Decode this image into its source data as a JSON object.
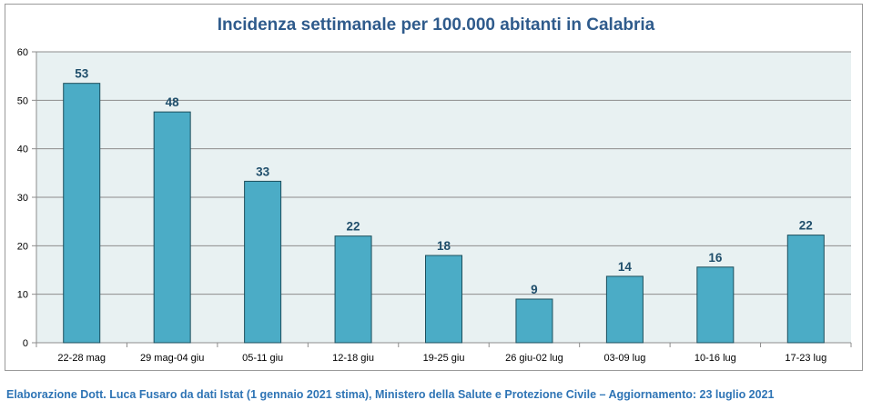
{
  "chart_data": {
    "type": "bar",
    "title": "Incidenza settimanale per 100.000 abitanti in Calabria",
    "categories": [
      "22-28 mag",
      "29 mag-04 giu",
      "05-11 giu",
      "12-18 giu",
      "19-25 giu",
      "26 giu-02 lug",
      "03-09 lug",
      "10-16 lug",
      "17-23 lug"
    ],
    "values": [
      53.5,
      47.6,
      33.3,
      22.0,
      18.0,
      9.0,
      13.7,
      15.6,
      22.2
    ],
    "data_labels": [
      "53",
      "48",
      "33",
      "22",
      "18",
      "9",
      "14",
      "16",
      "22"
    ],
    "yticks": [
      "0",
      "10",
      "20",
      "30",
      "40",
      "50",
      "60"
    ],
    "ylim": [
      0,
      60
    ],
    "grid": true,
    "legend": "none",
    "colors": {
      "bar_fill": "#4bacc6",
      "bar_stroke": "#1c4e5c",
      "plot_bg": "#e8f1f2",
      "title": "#2f5b8c",
      "data_label": "#1f4e6b",
      "footer": "#2e74b5"
    }
  },
  "footer": "Elaborazione Dott. Luca Fusaro da dati Istat (1 gennaio 2021 stima), Ministero della Salute e Protezione Civile – Aggiornamento: 23 luglio 2021"
}
